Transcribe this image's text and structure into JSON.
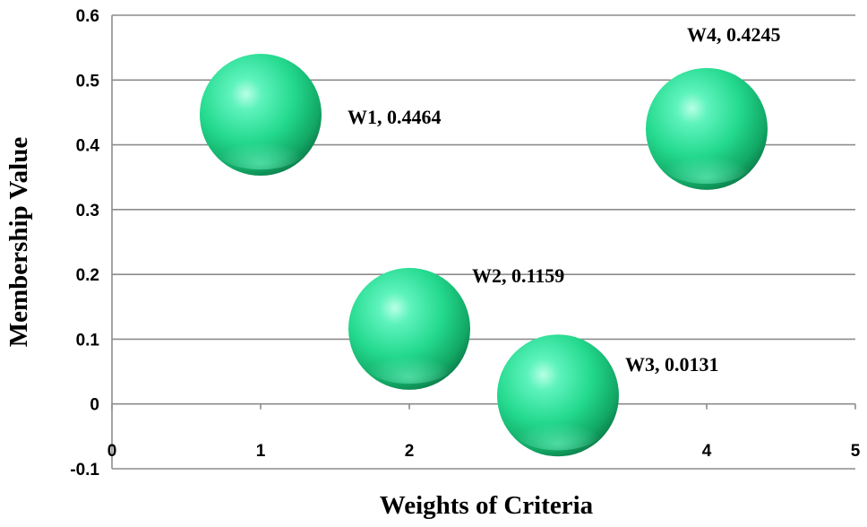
{
  "chart_data": {
    "type": "scatter",
    "title": "",
    "xlabel": "Weights of Criteria",
    "ylabel": "Membership Value",
    "xlim": [
      0,
      5
    ],
    "ylim": [
      -0.1,
      0.6
    ],
    "x_ticks": [
      "0",
      "1",
      "2",
      "3",
      "4",
      "5"
    ],
    "y_ticks": [
      "-0.1",
      "0",
      "0.1",
      "0.2",
      "0.3",
      "0.4",
      "0.5",
      "0.6"
    ],
    "grid": "horizontal",
    "marker": "bubble",
    "marker_color": "#2fe29a",
    "points": [
      {
        "x": 1,
        "y": 0.4464,
        "label": "W1, 0.4464"
      },
      {
        "x": 2,
        "y": 0.1159,
        "label": "W2, 0.1159"
      },
      {
        "x": 3,
        "y": 0.0131,
        "label": "W3, 0.0131"
      },
      {
        "x": 4,
        "y": 0.4245,
        "label": "W4, 0.4245"
      }
    ]
  }
}
